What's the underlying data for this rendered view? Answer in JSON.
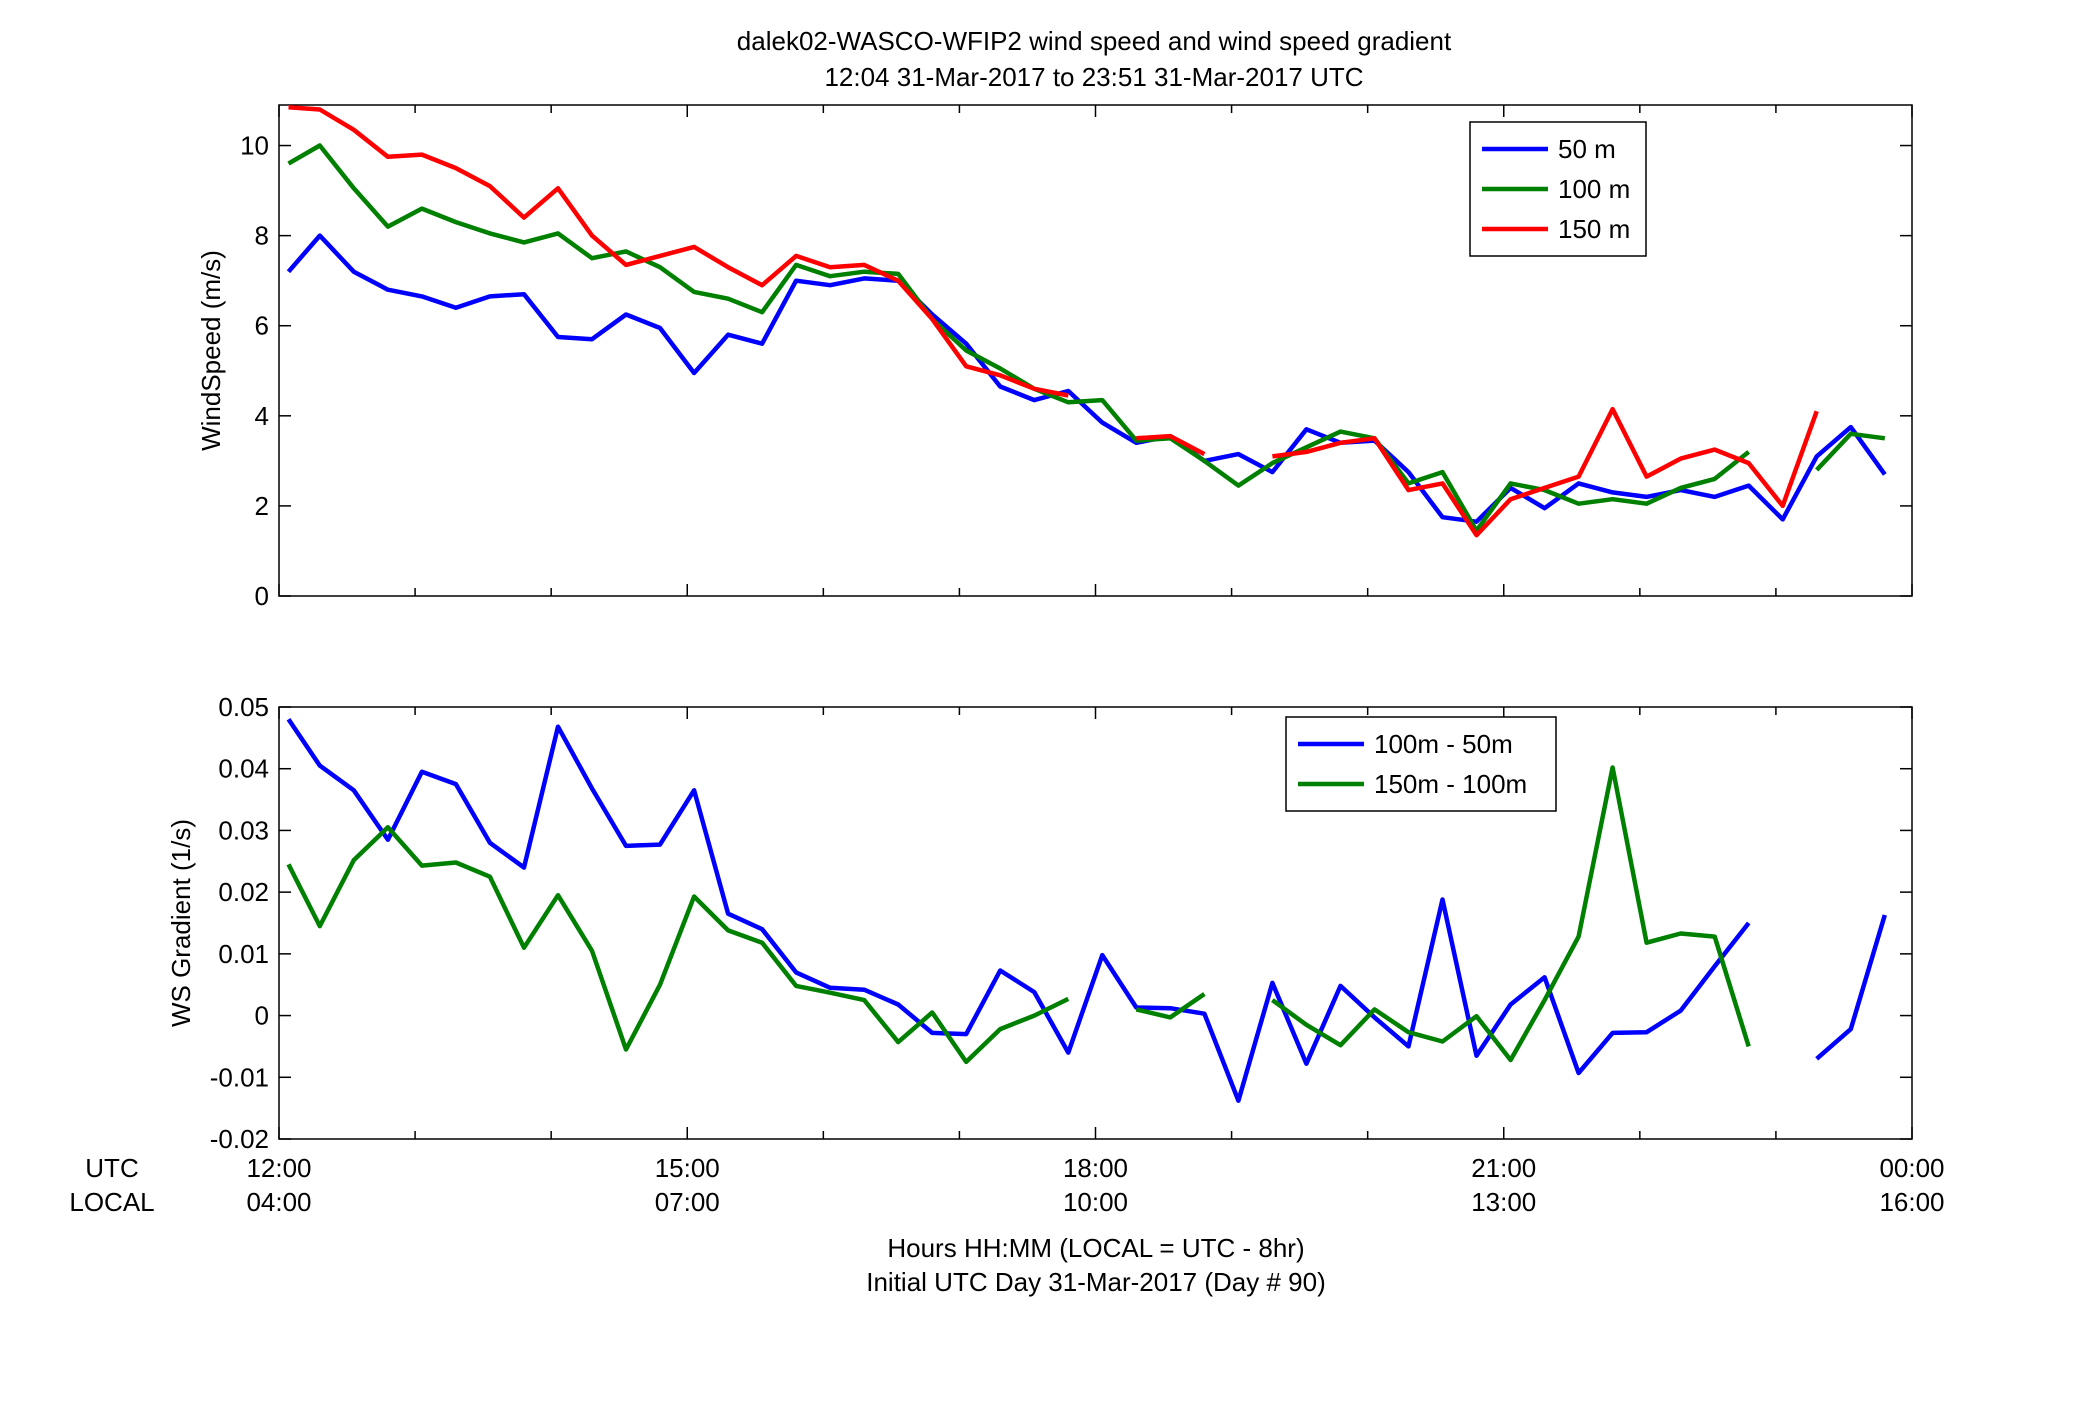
{
  "figure": {
    "title_line1": "dalek02-WASCO-WFIP2  wind speed and wind speed gradient",
    "title_line2": "12:04 31-Mar-2017 to 23:51 31-Mar-2017  UTC",
    "xlabel_line1": "Hours HH:MM  (LOCAL = UTC - 8hr)",
    "xlabel_line2": "Initial UTC Day 31-Mar-2017 (Day # 90)",
    "row_label_utc": "UTC",
    "row_label_local": "LOCAL",
    "colors": {
      "blue": "#0000ff",
      "green": "#008000",
      "red": "#ff0000"
    }
  },
  "chart_data": [
    {
      "type": "line",
      "ylabel": "WindSpeed (m/s)",
      "xlim": [
        12,
        24
      ],
      "ylim": [
        0,
        10.9
      ],
      "yticks": [
        0,
        2,
        4,
        6,
        8,
        10
      ],
      "ytick_labels": [
        "0",
        "2",
        "4",
        "6",
        "8",
        "10"
      ],
      "xticks": [
        12,
        15,
        18,
        21,
        24
      ],
      "xtick_labels_utc": [],
      "xtick_labels_local": [],
      "legend_position": "top-right",
      "series": [
        {
          "name": "50 m",
          "color": "#0000ff",
          "x": [
            12.07,
            12.3,
            12.55,
            12.8,
            13.05,
            13.3,
            13.55,
            13.8,
            14.05,
            14.3,
            14.55,
            14.8,
            15.05,
            15.3,
            15.55,
            15.8,
            16.05,
            16.3,
            16.55,
            16.8,
            17.05,
            17.3,
            17.55,
            17.8,
            18.05,
            18.3,
            18.55,
            18.8,
            19.05,
            19.3,
            19.55,
            19.8,
            20.05,
            20.3,
            20.55,
            20.8,
            21.05,
            21.3,
            21.55,
            21.8,
            22.05,
            22.3,
            22.55,
            22.8,
            23.05,
            23.3,
            23.55,
            23.8
          ],
          "values": [
            7.2,
            8.0,
            7.2,
            6.8,
            6.65,
            6.4,
            6.65,
            6.7,
            5.75,
            5.7,
            6.25,
            5.95,
            4.95,
            5.8,
            5.6,
            7.0,
            6.9,
            7.05,
            7.0,
            6.25,
            5.6,
            4.65,
            4.35,
            4.55,
            3.85,
            3.4,
            3.55,
            3.0,
            3.15,
            2.75,
            3.7,
            3.4,
            3.45,
            2.75,
            1.75,
            1.65,
            2.4,
            1.95,
            2.5,
            2.3,
            2.2,
            2.35,
            2.2,
            2.45,
            1.7,
            3.1,
            3.75,
            2.7
          ]
        },
        {
          "name": "100 m",
          "color": "#008000",
          "x": [
            12.07,
            12.3,
            12.55,
            12.8,
            13.05,
            13.3,
            13.55,
            13.8,
            14.05,
            14.3,
            14.55,
            14.8,
            15.05,
            15.3,
            15.55,
            15.8,
            16.05,
            16.3,
            16.55,
            16.8,
            17.05,
            17.3,
            17.55,
            17.8,
            18.05,
            18.3,
            18.55,
            18.8,
            19.05,
            19.3,
            19.55,
            19.8,
            20.05,
            20.3,
            20.55,
            20.8,
            21.05,
            21.3,
            21.55,
            21.8,
            22.05,
            22.3,
            22.55,
            22.8,
            23.05,
            23.3,
            23.55,
            23.8
          ],
          "values": [
            9.6,
            10.0,
            9.05,
            8.2,
            8.6,
            8.3,
            8.05,
            7.85,
            8.05,
            7.5,
            7.65,
            7.3,
            6.75,
            6.6,
            6.3,
            7.35,
            7.1,
            7.2,
            7.15,
            6.15,
            5.45,
            5.05,
            4.6,
            4.3,
            4.35,
            3.45,
            3.5,
            3.0,
            2.45,
            2.95,
            3.3,
            3.65,
            3.5,
            2.5,
            2.75,
            1.45,
            2.5,
            2.35,
            2.05,
            2.15,
            2.05,
            2.4,
            2.6,
            3.2,
            null,
            2.8,
            3.6,
            3.5
          ]
        },
        {
          "name": "150 m",
          "color": "#ff0000",
          "x": [
            12.07,
            12.3,
            12.55,
            12.8,
            13.05,
            13.3,
            13.55,
            13.8,
            14.05,
            14.3,
            14.55,
            14.8,
            15.05,
            15.3,
            15.55,
            15.8,
            16.05,
            16.3,
            16.55,
            16.8,
            17.05,
            17.3,
            17.55,
            17.8,
            18.05,
            18.3,
            18.55,
            18.8,
            19.05,
            19.3,
            19.55,
            19.8,
            20.05,
            20.3,
            20.55,
            20.8,
            21.05,
            21.3,
            21.55,
            21.8,
            22.05,
            22.3,
            22.55,
            22.8,
            23.05,
            23.3,
            23.55,
            23.8
          ],
          "values": [
            10.85,
            10.8,
            10.35,
            9.75,
            9.8,
            9.5,
            9.1,
            8.4,
            9.05,
            8.0,
            7.35,
            7.55,
            7.75,
            7.3,
            6.9,
            7.55,
            7.3,
            7.35,
            7.0,
            6.15,
            5.1,
            4.9,
            4.6,
            4.45,
            null,
            3.5,
            3.55,
            3.15,
            null,
            3.1,
            3.2,
            3.4,
            3.5,
            2.35,
            2.5,
            1.35,
            2.15,
            2.4,
            2.65,
            4.15,
            2.65,
            3.05,
            3.25,
            2.95,
            2.0,
            4.1,
            null,
            null
          ]
        }
      ]
    },
    {
      "type": "line",
      "ylabel": "WS Gradient (1/s)",
      "xlim": [
        12,
        24
      ],
      "ylim": [
        -0.02,
        0.05
      ],
      "yticks": [
        -0.02,
        -0.01,
        0,
        0.01,
        0.02,
        0.03,
        0.04,
        0.05
      ],
      "ytick_labels": [
        "-0.02",
        "-0.01",
        "0",
        "0.01",
        "0.02",
        "0.03",
        "0.04",
        "0.05"
      ],
      "xticks": [
        12,
        15,
        18,
        21,
        24
      ],
      "xtick_labels_utc": [
        "12:00",
        "15:00",
        "18:00",
        "21:00",
        "00:00"
      ],
      "xtick_labels_local": [
        "04:00",
        "07:00",
        "10:00",
        "13:00",
        "16:00"
      ],
      "legend_position": "top-right",
      "series": [
        {
          "name": "100m - 50m",
          "color": "#0000ff",
          "x": [
            12.07,
            12.3,
            12.55,
            12.8,
            13.05,
            13.3,
            13.55,
            13.8,
            14.05,
            14.3,
            14.55,
            14.8,
            15.05,
            15.3,
            15.55,
            15.8,
            16.05,
            16.3,
            16.55,
            16.8,
            17.05,
            17.3,
            17.55,
            17.8,
            18.05,
            18.3,
            18.55,
            18.8,
            19.05,
            19.3,
            19.55,
            19.8,
            20.05,
            20.3,
            20.55,
            20.8,
            21.05,
            21.3,
            21.55,
            21.8,
            22.05,
            22.3,
            22.55,
            22.8,
            23.05,
            23.3,
            23.55,
            23.8
          ],
          "values": [
            0.048,
            0.0405,
            0.0365,
            0.0285,
            0.0395,
            0.0375,
            0.028,
            0.024,
            0.0468,
            0.0368,
            0.0275,
            0.0277,
            0.0365,
            0.0165,
            0.014,
            0.007,
            0.0045,
            0.0042,
            0.0018,
            -0.0028,
            -0.003,
            0.0073,
            0.0038,
            -0.006,
            0.0098,
            0.0013,
            0.0012,
            0.0003,
            -0.0138,
            0.0053,
            -0.0078,
            0.0048,
            -0.0003,
            -0.005,
            0.0188,
            -0.0065,
            0.0018,
            0.0062,
            -0.0093,
            -0.0028,
            -0.0027,
            0.0008,
            0.008,
            0.015,
            null,
            -0.007,
            -0.0022,
            0.0163
          ]
        },
        {
          "name": "150m - 100m",
          "color": "#008000",
          "x": [
            12.07,
            12.3,
            12.55,
            12.8,
            13.05,
            13.3,
            13.55,
            13.8,
            14.05,
            14.3,
            14.55,
            14.8,
            15.05,
            15.3,
            15.55,
            15.8,
            16.05,
            16.3,
            16.55,
            16.8,
            17.05,
            17.3,
            17.55,
            17.8,
            18.05,
            18.3,
            18.55,
            18.8,
            19.05,
            19.3,
            19.55,
            19.8,
            20.05,
            20.3,
            20.55,
            20.8,
            21.05,
            21.3,
            21.55,
            21.8,
            22.05,
            22.3,
            22.55,
            22.8,
            23.05,
            23.3,
            23.55,
            23.8
          ],
          "values": [
            0.0245,
            0.0145,
            0.0252,
            0.0305,
            0.0243,
            0.0248,
            0.0225,
            0.011,
            0.0195,
            0.0105,
            -0.0055,
            0.005,
            0.0193,
            0.0138,
            0.0118,
            0.0048,
            0.0037,
            0.0025,
            -0.0043,
            0.0005,
            -0.0075,
            -0.0022,
            0.0,
            0.0027,
            null,
            0.001,
            -0.0003,
            0.0035,
            null,
            0.0025,
            -0.0015,
            -0.0048,
            0.001,
            -0.0027,
            -0.0042,
            -0.0001,
            -0.0072,
            0.0025,
            0.0128,
            0.0402,
            0.0118,
            0.0133,
            0.0128,
            -0.005,
            null,
            null,
            null,
            null
          ]
        }
      ]
    }
  ]
}
